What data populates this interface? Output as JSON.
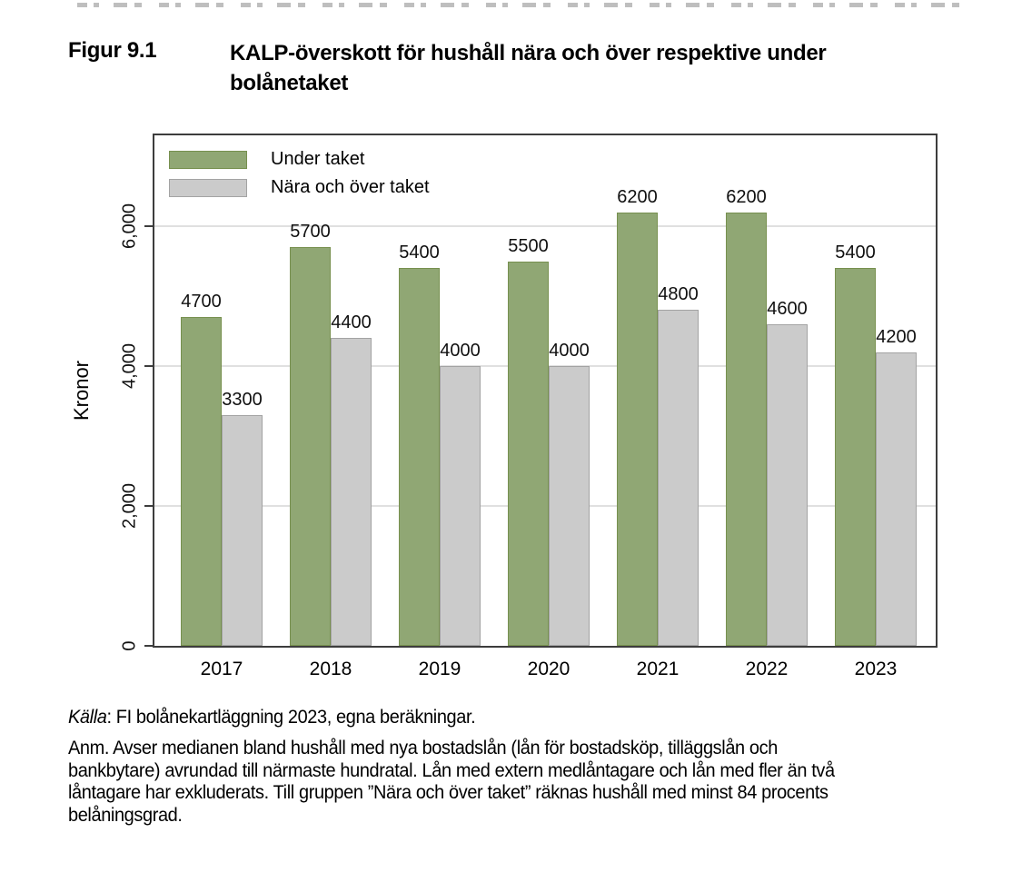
{
  "figure": {
    "label": "Figur 9.1",
    "title": "KALP-överskott för hushåll nära och över respektive under bolånetaket"
  },
  "source": {
    "label": "Källa",
    "text": ": FI bolånekartläggning 2023, egna beräkningar."
  },
  "note_lines": [
    "Anm. Avser medianen bland hushåll med nya bostadslån (lån för bostadsköp, tilläggslån och",
    "bankbytare) avrundad till närmaste hundratal. Lån med extern medlåntagare och lån med fler än två",
    "låntagare har exkluderats. Till gruppen ”Nära och över taket” räknas hushåll med minst 84 procents",
    "belåningsgrad."
  ],
  "chart_data": {
    "type": "bar",
    "title": "",
    "xlabel": "",
    "ylabel": "Kronor",
    "categories": [
      "2017",
      "2018",
      "2019",
      "2020",
      "2021",
      "2022",
      "2023"
    ],
    "series": [
      {
        "name": "Under taket",
        "color": "#90A774",
        "border_color": "#77904F",
        "values": [
          4700,
          5700,
          5400,
          5500,
          6200,
          6200,
          5400
        ]
      },
      {
        "name": "Nära och över taket",
        "color": "#CBCBCB",
        "border_color": "#A3A3A3",
        "values": [
          3300,
          4400,
          4000,
          4000,
          4800,
          4600,
          4200
        ]
      }
    ],
    "bar_value_labels": true,
    "ylim": [
      0,
      7300
    ],
    "yticks": [
      0,
      2000,
      4000,
      6000
    ],
    "ytick_labels": [
      "0",
      "2,000",
      "4,000",
      "6,000"
    ],
    "grid": true,
    "legend_position": "top-left"
  },
  "colors": {
    "axis": "#3D3D3D",
    "gridline": "#E0E0E0"
  }
}
